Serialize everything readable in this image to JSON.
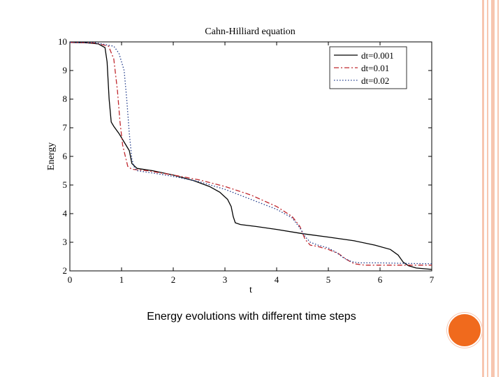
{
  "slide": {
    "caption": "Energy evolutions with different time steps",
    "accent_color": "#f06a1d",
    "stripe_color": "#f7c6b0"
  },
  "chart_data": {
    "type": "line",
    "title": "Cahn-Hilliard equation",
    "xlabel": "t",
    "ylabel": "Energy",
    "xlim": [
      0,
      7
    ],
    "ylim": [
      2,
      10
    ],
    "xticks": [
      0,
      1,
      2,
      3,
      4,
      5,
      6,
      7
    ],
    "yticks": [
      2,
      3,
      4,
      5,
      6,
      7,
      8,
      9,
      10
    ],
    "legend_position": "top-right",
    "series": [
      {
        "name": "dt=0.001",
        "style": "solid",
        "color": "#000000",
        "x": [
          0,
          0.3,
          0.55,
          0.68,
          0.72,
          0.76,
          0.8,
          0.85,
          0.95,
          1.05,
          1.15,
          1.2,
          1.3,
          1.6,
          2.0,
          2.4,
          2.7,
          2.9,
          3.05,
          3.12,
          3.16,
          3.2,
          3.3,
          3.6,
          4.0,
          4.5,
          5.0,
          5.5,
          5.9,
          6.2,
          6.35,
          6.45,
          6.55,
          6.7,
          7.0
        ],
        "y": [
          9.98,
          9.97,
          9.93,
          9.8,
          9.3,
          8.0,
          7.2,
          7.05,
          6.8,
          6.5,
          6.2,
          5.75,
          5.58,
          5.5,
          5.35,
          5.15,
          4.95,
          4.75,
          4.5,
          4.25,
          3.9,
          3.68,
          3.62,
          3.55,
          3.45,
          3.3,
          3.18,
          3.05,
          2.9,
          2.75,
          2.55,
          2.3,
          2.18,
          2.1,
          2.05
        ]
      },
      {
        "name": "dt=0.01",
        "style": "dashdot",
        "color": "#c0282e",
        "x": [
          0,
          0.5,
          0.75,
          0.85,
          0.92,
          0.97,
          1.02,
          1.08,
          1.12,
          1.2,
          1.5,
          2.0,
          2.5,
          3.0,
          3.5,
          4.0,
          4.3,
          4.45,
          4.55,
          4.65,
          4.8,
          5.0,
          5.2,
          5.35,
          5.5,
          5.7,
          6.0,
          6.5,
          7.0
        ],
        "y": [
          9.98,
          9.96,
          9.85,
          9.4,
          8.3,
          7.2,
          6.4,
          5.95,
          5.65,
          5.55,
          5.5,
          5.35,
          5.18,
          4.95,
          4.65,
          4.25,
          3.9,
          3.55,
          3.1,
          2.9,
          2.85,
          2.75,
          2.6,
          2.4,
          2.25,
          2.2,
          2.2,
          2.2,
          2.2
        ]
      },
      {
        "name": "dt=0.02",
        "style": "dotted",
        "color": "#1f3a8a",
        "x": [
          0,
          0.5,
          0.85,
          0.95,
          1.05,
          1.1,
          1.15,
          1.2,
          1.25,
          1.3,
          1.6,
          2.0,
          2.5,
          3.0,
          3.5,
          4.0,
          4.3,
          4.45,
          4.55,
          4.65,
          4.8,
          5.0,
          5.15,
          5.3,
          5.45,
          5.6,
          6.0,
          6.5,
          7.0
        ],
        "y": [
          9.98,
          9.97,
          9.85,
          9.6,
          9.0,
          8.0,
          6.8,
          5.9,
          5.6,
          5.5,
          5.42,
          5.3,
          5.12,
          4.85,
          4.5,
          4.15,
          3.85,
          3.5,
          3.2,
          3.0,
          2.9,
          2.8,
          2.65,
          2.45,
          2.32,
          2.28,
          2.28,
          2.26,
          2.25
        ]
      }
    ]
  }
}
